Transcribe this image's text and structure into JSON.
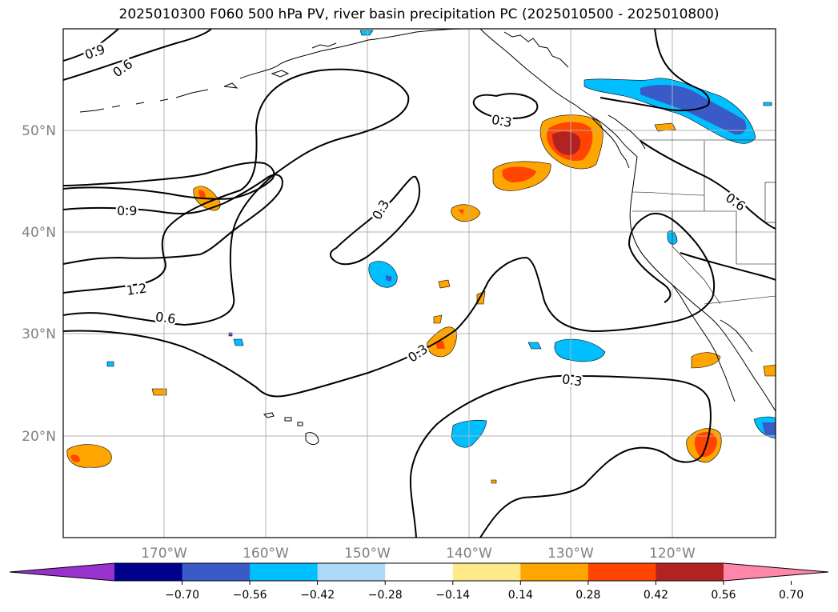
{
  "title": "2025010300 F060 500 hPa PV, river basin precipitation PC (2025010500 - 2025010800)",
  "latitude_labels": [
    "50°N",
    "40°N",
    "30°N",
    "20°N"
  ],
  "longitude_labels": [
    "170°W",
    "160°W",
    "150°W",
    "140°W",
    "130°W",
    "120°W"
  ],
  "contour_labels": [
    "0.9",
    "0.6",
    "0.9",
    "1.2",
    "0.6",
    "0.3",
    "0.3",
    "0.3",
    "0.3",
    "0.6"
  ],
  "colorbar": {
    "tick_labels": [
      "−0.70",
      "−0.56",
      "−0.42",
      "−0.28",
      "−0.14",
      "0.14",
      "0.28",
      "0.42",
      "0.56",
      "0.70"
    ],
    "colors": [
      "#9932cc",
      "#00008b",
      "#3a5bc7",
      "#00bfff",
      "#add8f7",
      "#ffffff",
      "#ffea8a",
      "#ffa500",
      "#ff4500",
      "#b22222",
      "#ff88aa"
    ]
  }
}
